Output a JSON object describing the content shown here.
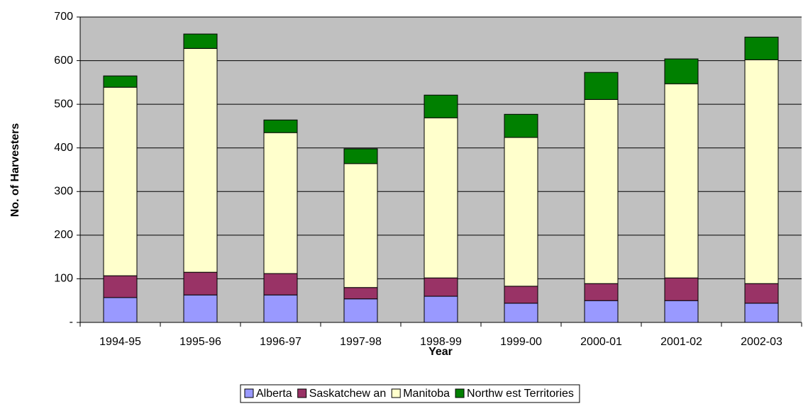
{
  "chart_data": {
    "type": "stacked_bar",
    "x_label": "Year",
    "y_label": "No. of Harvesters",
    "categories": [
      "1994-95",
      "1995-96",
      "1996-97",
      "1997-98",
      "1998-99",
      "1999-00",
      "2000-01",
      "2001-02",
      "2002-03"
    ],
    "series": [
      {
        "name": "Alberta",
        "color": "#9999ff",
        "values": [
          57,
          63,
          63,
          54,
          60,
          44,
          50,
          50,
          44
        ]
      },
      {
        "name": "Saskatchew an",
        "color": "#993366",
        "values": [
          50,
          52,
          49,
          26,
          42,
          39,
          39,
          52,
          45
        ]
      },
      {
        "name": "Manitoba",
        "color": "#ffffcc",
        "values": [
          432,
          513,
          323,
          284,
          367,
          341,
          422,
          445,
          513
        ]
      },
      {
        "name": "Northw est Territories",
        "color": "#008000",
        "values": [
          26,
          33,
          29,
          34,
          52,
          53,
          62,
          57,
          52
        ]
      }
    ],
    "ylim": [
      0,
      700
    ],
    "yticks": [
      {
        "value": 0,
        "label": "-"
      },
      100,
      200,
      300,
      400,
      500,
      600,
      700
    ],
    "grid": true,
    "legend": "bottom",
    "background": "#c0c0c0"
  }
}
